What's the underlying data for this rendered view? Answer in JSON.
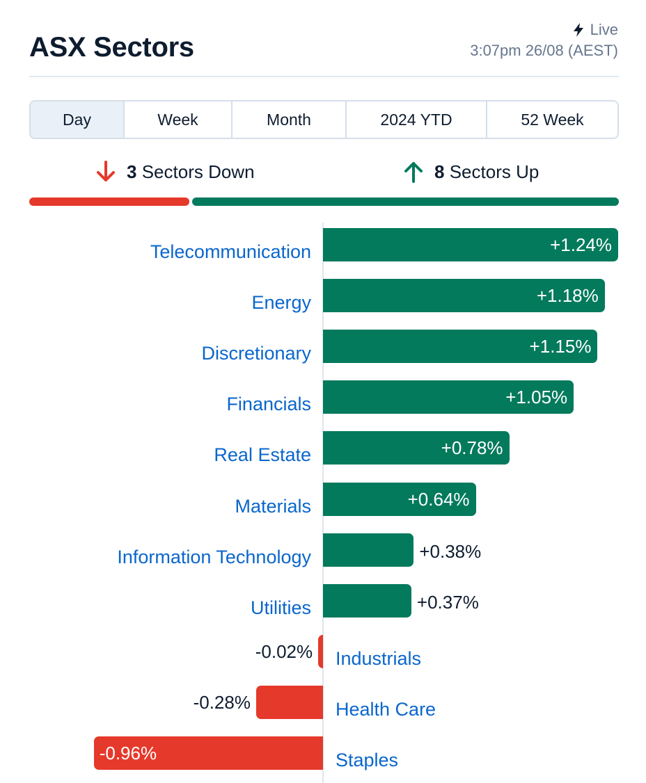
{
  "header": {
    "title": "ASX Sectors",
    "live_label": "Live",
    "timestamp": "3:07pm 26/08 (AEST)"
  },
  "tabs": [
    {
      "label": "Day",
      "active": true
    },
    {
      "label": "Week",
      "active": false
    },
    {
      "label": "Month",
      "active": false
    },
    {
      "label": "2024 YTD",
      "active": false
    },
    {
      "label": "52 Week",
      "active": false
    }
  ],
  "summary": {
    "down_count": "3",
    "down_label": "Sectors Down",
    "up_count": "8",
    "up_label": "Sectors Up"
  },
  "colors": {
    "positive": "#037a5c",
    "negative": "#e5392b",
    "link": "#0a66cc"
  },
  "chart_data": {
    "type": "bar",
    "orientation": "horizontal",
    "categories": [
      "Telecommunication",
      "Energy",
      "Discretionary",
      "Financials",
      "Real Estate",
      "Materials",
      "Information Technology",
      "Utilities",
      "Industrials",
      "Health Care",
      "Staples"
    ],
    "values": [
      1.24,
      1.18,
      1.15,
      1.05,
      0.78,
      0.64,
      0.38,
      0.37,
      -0.02,
      -0.28,
      -0.96
    ],
    "value_labels": [
      "+1.24%",
      "+1.18%",
      "+1.15%",
      "+1.05%",
      "+0.78%",
      "+0.64%",
      "+0.38%",
      "+0.37%",
      "-0.02%",
      "-0.28%",
      "-0.96%"
    ],
    "unit": "%"
  }
}
